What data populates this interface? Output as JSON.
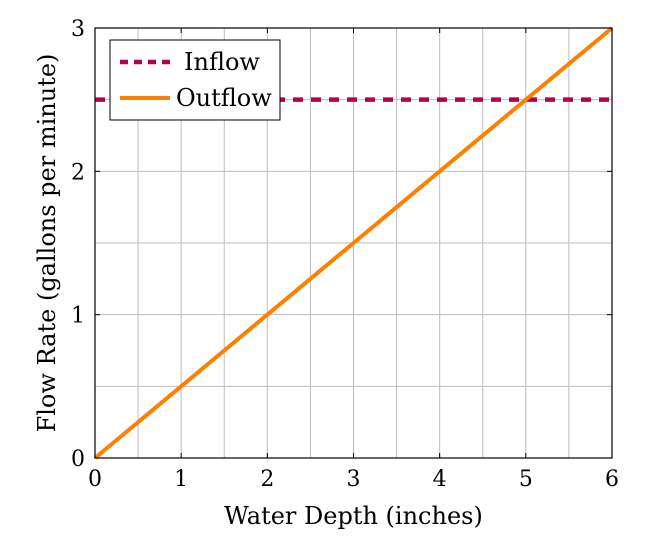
{
  "chart_data": {
    "type": "line",
    "xlabel": "Water Depth (inches)",
    "ylabel": "Flow Rate (gallons per minute)",
    "xlim": [
      0,
      6
    ],
    "ylim": [
      0,
      3
    ],
    "xticks": [
      "0",
      "1",
      "2",
      "3",
      "4",
      "5",
      "6"
    ],
    "yticks": [
      "0",
      "1",
      "2",
      "3"
    ],
    "grid": true,
    "legend_position": "top-left",
    "series": [
      {
        "name": "Inflow",
        "color": "#b5004b",
        "style": "dashed",
        "x": [
          0,
          6
        ],
        "y": [
          2.5,
          2.5
        ]
      },
      {
        "name": "Outflow",
        "color": "#ff8000",
        "style": "solid",
        "x": [
          0,
          6
        ],
        "y": [
          0,
          3
        ]
      }
    ]
  }
}
